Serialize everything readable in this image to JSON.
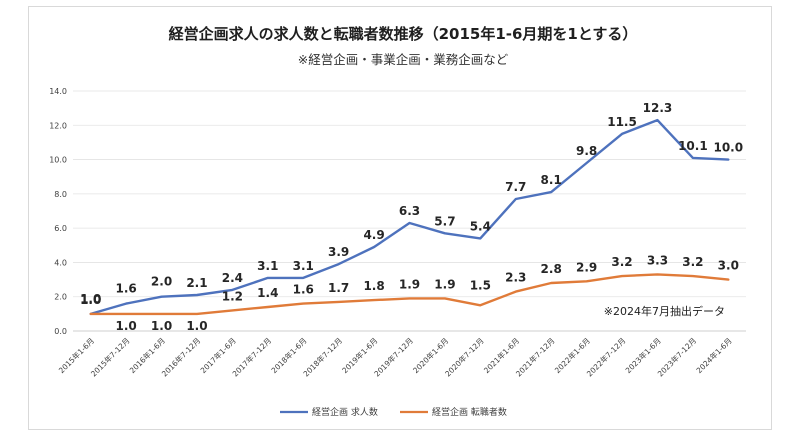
{
  "chart_data": {
    "type": "line",
    "title": "経営企画求人の求人数と転職者数推移（2015年1-6月期を1とする）",
    "subtitle": "※経営企画・事業企画・業務企画など",
    "note": "※2024年7月抽出データ",
    "categories": [
      "2015年1-6月",
      "2015年7-12月",
      "2016年1-6月",
      "2016年7-12月",
      "2017年1-6月",
      "2017年7-12月",
      "2018年1-6月",
      "2018年7-12月",
      "2019年1-6月",
      "2019年7-12月",
      "2020年1-6月",
      "2020年7-12月",
      "2021年1-6月",
      "2021年7-12月",
      "2022年1-6月",
      "2022年7-12月",
      "2023年1-6月",
      "2023年7-12月",
      "2024年1-6月"
    ],
    "ylim": [
      0,
      14
    ],
    "yticks": [
      "0.0",
      "2.0",
      "4.0",
      "6.0",
      "8.0",
      "10.0",
      "12.0",
      "14.0"
    ],
    "grid": true,
    "series": [
      {
        "name": "経営企画 求人数",
        "color": "#4e72bd",
        "values": [
          1.0,
          1.6,
          2.0,
          2.1,
          2.4,
          3.1,
          3.1,
          3.9,
          4.9,
          6.3,
          5.7,
          5.4,
          7.7,
          8.1,
          9.8,
          11.5,
          12.3,
          10.1,
          10.0
        ],
        "labels": [
          "1.0",
          "1.6",
          "2.0",
          "2.1",
          "2.4",
          "3.1",
          "3.1",
          "3.9",
          "4.9",
          "6.3",
          "5.7",
          "5.4",
          "7.7",
          "8.1",
          "9.8",
          "11.5",
          "12.3",
          "10.1",
          "10.0"
        ]
      },
      {
        "name": "経営企画 転職者数",
        "color": "#e07b39",
        "values": [
          1.0,
          1.0,
          1.0,
          1.0,
          1.2,
          1.4,
          1.6,
          1.7,
          1.8,
          1.9,
          1.9,
          1.5,
          2.3,
          2.8,
          2.9,
          3.2,
          3.3,
          3.2,
          3.0
        ],
        "labels": [
          "1.0",
          "1.0",
          "1.0",
          "1.0",
          "1.2",
          "1.4",
          "1.6",
          "1.7",
          "1.8",
          "1.9",
          "1.9",
          "1.5",
          "2.3",
          "2.8",
          "2.9",
          "3.2",
          "3.3",
          "3.2",
          "3.0"
        ]
      }
    ],
    "legend": "bottom"
  }
}
